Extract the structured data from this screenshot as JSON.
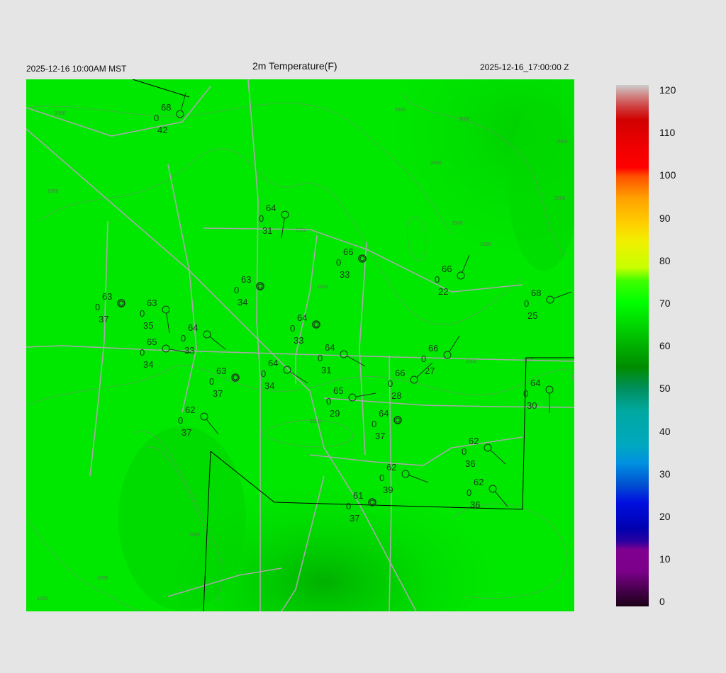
{
  "header": {
    "title": "2m Temperature(F)",
    "valid_local": "2025-12-16 10:00AM MST",
    "valid_utc": "2025-12-16_17:00:00 Z"
  },
  "colorbar": {
    "ticks": [
      "120",
      "110",
      "100",
      "90",
      "80",
      "70",
      "60",
      "50",
      "40",
      "30",
      "20",
      "10",
      "0"
    ],
    "range": [
      0,
      120
    ],
    "units": "F"
  },
  "colors": {
    "map_fill": "#00e600",
    "roads": "#a0a0a0",
    "contours": "#6a9a6a",
    "stations": "#1a3a1a",
    "background": "#e5e5e5"
  },
  "contour_labels": [
    "2000",
    "3500",
    "3000",
    "2500",
    "2000",
    "2500",
    "1500",
    "1500",
    "1000",
    "1500",
    "1500",
    "2000",
    "1500",
    "1000",
    "1000",
    "1500",
    "1500"
  ],
  "stations": [
    {
      "temp": "68",
      "dew": "42",
      "vis": "0"
    },
    {
      "temp": "64",
      "dew": "31",
      "vis": "0"
    },
    {
      "temp": "66",
      "dew": "33",
      "vis": "0"
    },
    {
      "temp": "63",
      "dew": "34",
      "vis": "0"
    },
    {
      "temp": "66",
      "dew": "22",
      "vis": "0"
    },
    {
      "temp": "63",
      "dew": "37",
      "vis": "0"
    },
    {
      "temp": "63",
      "dew": "35",
      "vis": "0"
    },
    {
      "temp": "68",
      "dew": "25",
      "vis": "0"
    },
    {
      "temp": "64",
      "dew": "33",
      "vis": "0"
    },
    {
      "temp": "64",
      "dew": "33",
      "vis": "0"
    },
    {
      "temp": "65",
      "dew": "34",
      "vis": "0"
    },
    {
      "temp": "64",
      "dew": "31",
      "vis": "0"
    },
    {
      "temp": "66",
      "dew": "27",
      "vis": "0"
    },
    {
      "temp": "64",
      "dew": "34",
      "vis": "0"
    },
    {
      "temp": "63",
      "dew": "37",
      "vis": "0"
    },
    {
      "temp": "66",
      "dew": "28",
      "vis": "0"
    },
    {
      "temp": "65",
      "dew": "29",
      "vis": "0"
    },
    {
      "temp": "64",
      "dew": "30",
      "vis": "0"
    },
    {
      "temp": "64",
      "dew": "37",
      "vis": "0"
    },
    {
      "temp": "62",
      "dew": "37",
      "vis": "0"
    },
    {
      "temp": "62",
      "dew": "36",
      "vis": "0"
    },
    {
      "temp": "62",
      "dew": "39",
      "vis": "0"
    },
    {
      "temp": "62",
      "dew": "36",
      "vis": "0"
    },
    {
      "temp": "61",
      "dew": "37",
      "vis": "0"
    }
  ]
}
